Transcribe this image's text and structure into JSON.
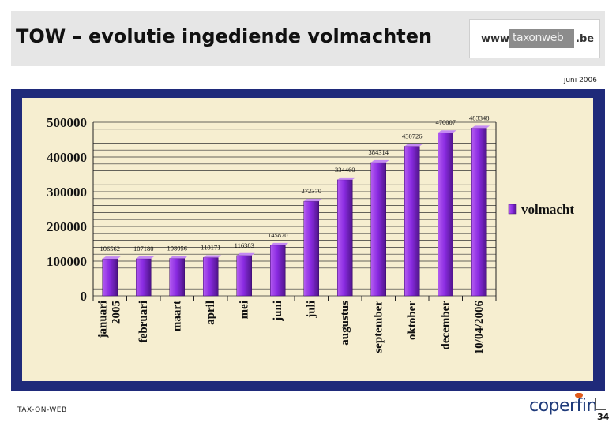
{
  "slide": {
    "title": "TOW – evolutie ingediende volmachten",
    "date": "juni 2006",
    "footer": "TAX-ON-WEB",
    "page_number": "34",
    "logo_left": "www.",
    "logo_mid": "taxonweb",
    "logo_right": ".be",
    "company_logo": "coperfin"
  },
  "colors": {
    "frame": "#1f2a7a",
    "plot_bg": "#f6eed0",
    "bar": "#8a2be2",
    "bar_dark": "#5b1a99"
  },
  "chart_data": {
    "type": "bar",
    "title": "",
    "xlabel": "",
    "ylabel": "",
    "ylim": [
      0,
      500000
    ],
    "yticks": [
      "0",
      "100000",
      "200000",
      "300000",
      "400000",
      "500000"
    ],
    "grid": true,
    "legend_position": "right",
    "categories": [
      "januari 2005",
      "februari",
      "maart",
      "april",
      "mei",
      "juni",
      "juli",
      "augustus",
      "september",
      "oktober",
      "december",
      "10/04/2006"
    ],
    "series": [
      {
        "name": "volmacht",
        "values": [
          106562,
          107180,
          108056,
          110171,
          116383,
          145870,
          272370,
          334460,
          384314,
          430726,
          470007,
          483348
        ]
      }
    ],
    "data_labels": [
      "106562",
      "107180",
      "108056",
      "110171",
      "116383",
      "145870",
      "272370",
      "334460",
      "384314",
      "430726",
      "470007",
      "483348"
    ]
  }
}
